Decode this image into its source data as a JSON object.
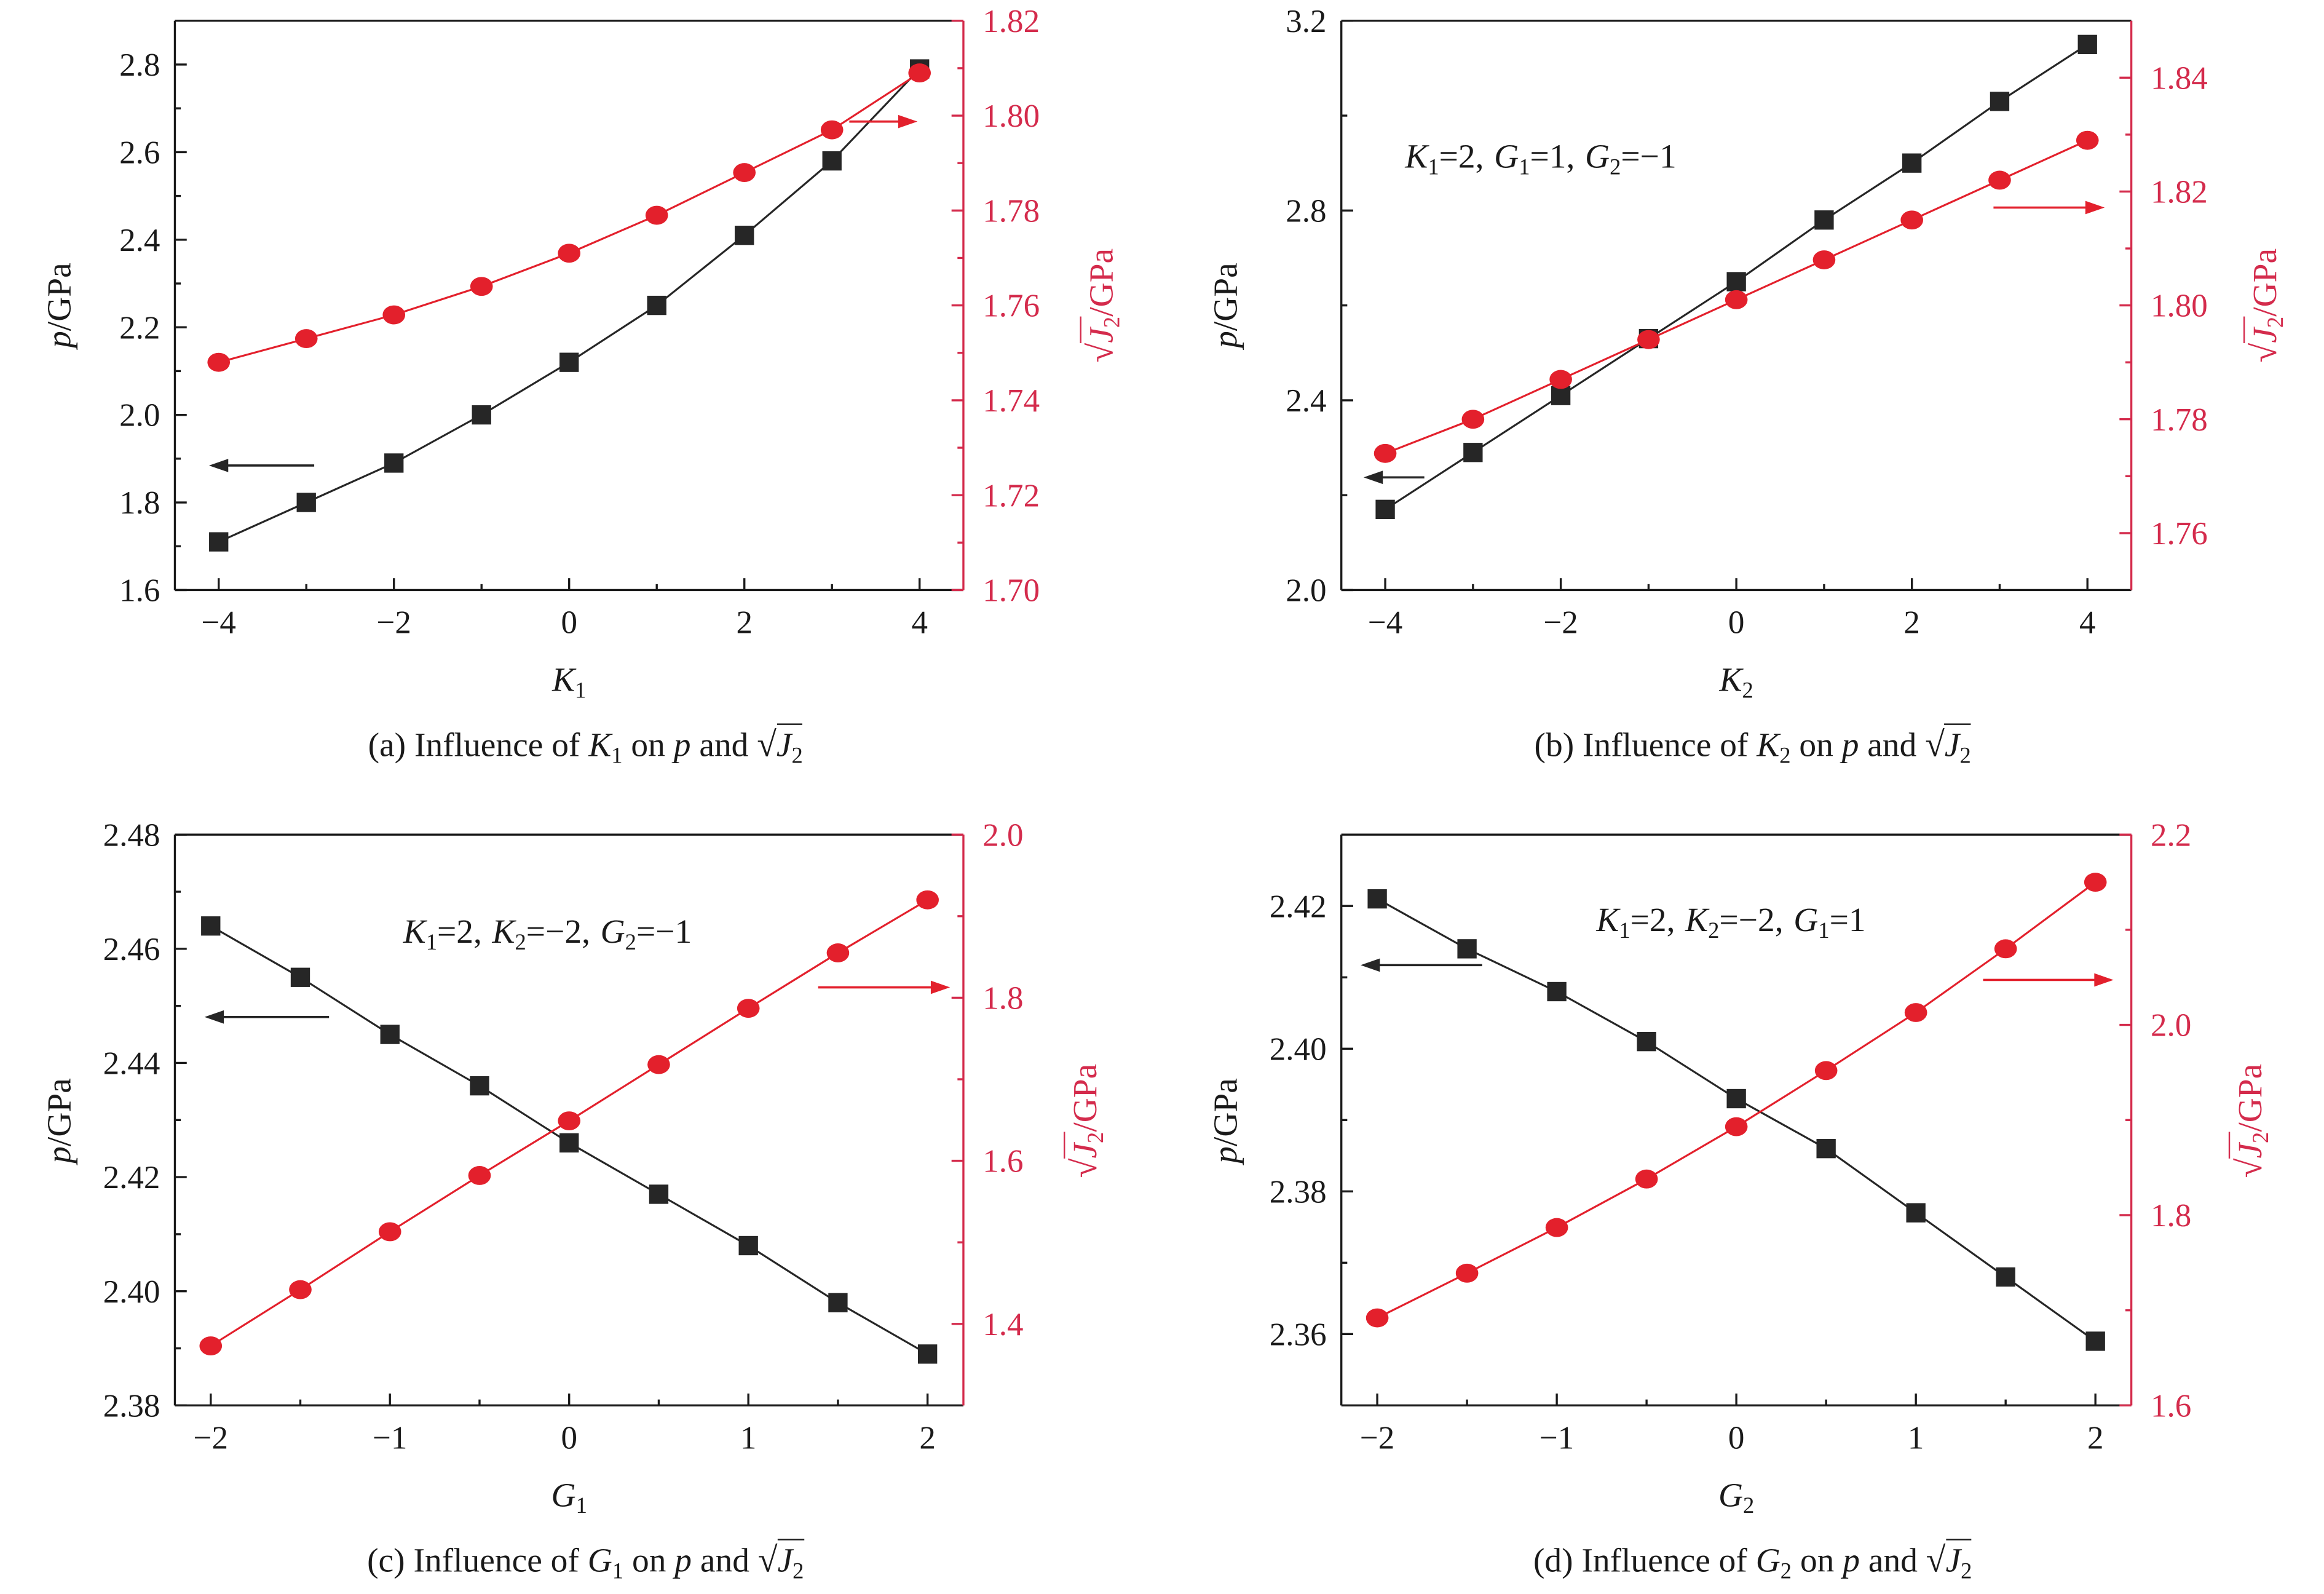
{
  "chart_data": [
    {
      "type": "line",
      "title": {
        "prefix": "(a) Influence of",
        "var": "K",
        "var_sub": "1",
        "on": "on",
        "p": "p",
        "and": "and",
        "radical": "√",
        "j": "J",
        "j_sub": "2"
      },
      "xlabel": {
        "var": "K",
        "sub": "1"
      },
      "ylabel_left": {
        "var": "p",
        "unit": "/GPa"
      },
      "ylabel_right": {
        "radical": "√",
        "var": "J",
        "sub": "2",
        "unit": "/GPa"
      },
      "annotation": [],
      "xlim": [
        -4.5,
        4.5
      ],
      "ylim_left": [
        1.6,
        2.9
      ],
      "ylim_right": [
        1.7,
        1.82
      ],
      "xticks": [
        "−4",
        "−2",
        "0",
        "2",
        "4"
      ],
      "yticks_left": [
        "1.6",
        "1.8",
        "2.0",
        "2.2",
        "2.4",
        "2.6",
        "2.8"
      ],
      "yticks_right": [
        "1.70",
        "1.72",
        "1.74",
        "1.76",
        "1.78",
        "1.80",
        "1.82"
      ],
      "grid": false,
      "axis_color": "#1a1a1a",
      "right_axis_color": "#d42b4c",
      "x": [
        -4,
        -3,
        -2,
        -1,
        0,
        1,
        2,
        3,
        4
      ],
      "series": [
        {
          "axis": "left",
          "marker": "square",
          "color": "#262626",
          "values": [
            1.71,
            1.8,
            1.89,
            2.0,
            2.12,
            2.25,
            2.41,
            2.58,
            2.79
          ]
        },
        {
          "axis": "right",
          "marker": "circle",
          "color": "#e3202c",
          "values": [
            1.748,
            1.753,
            1.758,
            1.764,
            1.771,
            1.779,
            1.788,
            1.797,
            1.809
          ]
        }
      ]
    },
    {
      "type": "line",
      "title": {
        "prefix": "(b) Influence of",
        "var": "K",
        "var_sub": "2",
        "on": "on",
        "p": "p",
        "and": "and",
        "radical": "√",
        "j": "J",
        "j_sub": "2"
      },
      "xlabel": {
        "var": "K",
        "sub": "2"
      },
      "ylabel_left": {
        "var": "p",
        "unit": "/GPa"
      },
      "ylabel_right": {
        "radical": "√",
        "var": "J",
        "sub": "2",
        "unit": "/GPa"
      },
      "annotation": [
        {
          "var": "K",
          "sub": "1",
          "text": "=2,"
        },
        {
          "var": "G",
          "sub": "1",
          "text": "=1,"
        },
        {
          "var": "G",
          "sub": "2",
          "text": "=−1"
        }
      ],
      "xlim": [
        -4.5,
        4.5
      ],
      "ylim_left": [
        2.0,
        3.2
      ],
      "ylim_right": [
        1.75,
        1.85
      ],
      "xticks": [
        "−4",
        "−2",
        "0",
        "2",
        "4"
      ],
      "yticks_left": [
        "2.0",
        "2.4",
        "2.8",
        "3.2"
      ],
      "yticks_right": [
        "1.76",
        "1.78",
        "1.80",
        "1.82",
        "1.84"
      ],
      "grid": false,
      "axis_color": "#1a1a1a",
      "right_axis_color": "#d42b4c",
      "x": [
        -4,
        -3,
        -2,
        -1,
        0,
        1,
        2,
        3,
        4
      ],
      "series": [
        {
          "axis": "left",
          "marker": "square",
          "color": "#262626",
          "values": [
            2.17,
            2.29,
            2.41,
            2.53,
            2.65,
            2.78,
            2.9,
            3.03,
            3.15
          ]
        },
        {
          "axis": "right",
          "marker": "circle",
          "color": "#e3202c",
          "values": [
            1.774,
            1.78,
            1.787,
            1.794,
            1.801,
            1.808,
            1.815,
            1.822,
            1.829
          ]
        }
      ]
    },
    {
      "type": "line",
      "title": {
        "prefix": "(c) Influence of",
        "var": "G",
        "var_sub": "1",
        "on": "on",
        "p": "p",
        "and": "and",
        "radical": "√",
        "j": "J",
        "j_sub": "2"
      },
      "xlabel": {
        "var": "G",
        "sub": "1"
      },
      "ylabel_left": {
        "var": "p",
        "unit": "/GPa"
      },
      "ylabel_right": {
        "radical": "√",
        "var": "J",
        "sub": "2",
        "unit": "/GPa"
      },
      "annotation": [
        {
          "var": "K",
          "sub": "1",
          "text": "=2,"
        },
        {
          "var": "K",
          "sub": "2",
          "text": "=−2,"
        },
        {
          "var": "G",
          "sub": "2",
          "text": "=−1"
        }
      ],
      "xlim": [
        -2.2,
        2.2
      ],
      "ylim_left": [
        2.38,
        2.48
      ],
      "ylim_right": [
        1.3,
        2.0
      ],
      "xticks": [
        "−2",
        "−1",
        "0",
        "1",
        "2"
      ],
      "yticks_left": [
        "2.38",
        "2.40",
        "2.42",
        "2.44",
        "2.46",
        "2.48"
      ],
      "yticks_right": [
        "1.4",
        "1.6",
        "1.8",
        "2.0"
      ],
      "grid": false,
      "axis_color": "#1a1a1a",
      "right_axis_color": "#d42b4c",
      "x": [
        -2,
        -1.5,
        -1,
        -0.5,
        0,
        0.5,
        1,
        1.5,
        2
      ],
      "series": [
        {
          "axis": "left",
          "marker": "square",
          "color": "#262626",
          "values": [
            2.464,
            2.455,
            2.445,
            2.436,
            2.426,
            2.417,
            2.408,
            2.398,
            2.389
          ]
        },
        {
          "axis": "right",
          "marker": "circle",
          "color": "#e3202c",
          "values": [
            1.373,
            1.442,
            1.513,
            1.582,
            1.649,
            1.718,
            1.787,
            1.855,
            1.92
          ]
        }
      ]
    },
    {
      "type": "line",
      "title": {
        "prefix": "(d) Influence of",
        "var": "G",
        "var_sub": "2",
        "on": "on",
        "p": "p",
        "and": "and",
        "radical": "√",
        "j": "J",
        "j_sub": "2"
      },
      "xlabel": {
        "var": "G",
        "sub": "2"
      },
      "ylabel_left": {
        "var": "p",
        "unit": "/GPa"
      },
      "ylabel_right": {
        "radical": "√",
        "var": "J",
        "sub": "2",
        "unit": "/GPa"
      },
      "annotation": [
        {
          "var": "K",
          "sub": "1",
          "text": "=2,"
        },
        {
          "var": "K",
          "sub": "2",
          "text": "=−2,"
        },
        {
          "var": "G",
          "sub": "1",
          "text": "=1"
        }
      ],
      "xlim": [
        -2.2,
        2.2
      ],
      "ylim_left": [
        2.35,
        2.43
      ],
      "ylim_right": [
        1.6,
        2.2
      ],
      "xticks": [
        "−2",
        "−1",
        "0",
        "1",
        "2"
      ],
      "yticks_left": [
        "2.36",
        "2.38",
        "2.40",
        "2.42"
      ],
      "yticks_right": [
        "1.6",
        "1.8",
        "2.0",
        "2.2"
      ],
      "grid": false,
      "axis_color": "#1a1a1a",
      "right_axis_color": "#d42b4c",
      "x": [
        -2,
        -1.5,
        -1,
        -0.5,
        0,
        0.5,
        1,
        1.5,
        2
      ],
      "series": [
        {
          "axis": "left",
          "marker": "square",
          "color": "#262626",
          "values": [
            2.421,
            2.414,
            2.408,
            2.401,
            2.393,
            2.386,
            2.377,
            2.368,
            2.359
          ]
        },
        {
          "axis": "right",
          "marker": "circle",
          "color": "#e3202c",
          "values": [
            1.692,
            1.739,
            1.787,
            1.838,
            1.893,
            1.952,
            2.013,
            2.08,
            2.15
          ]
        }
      ]
    }
  ]
}
